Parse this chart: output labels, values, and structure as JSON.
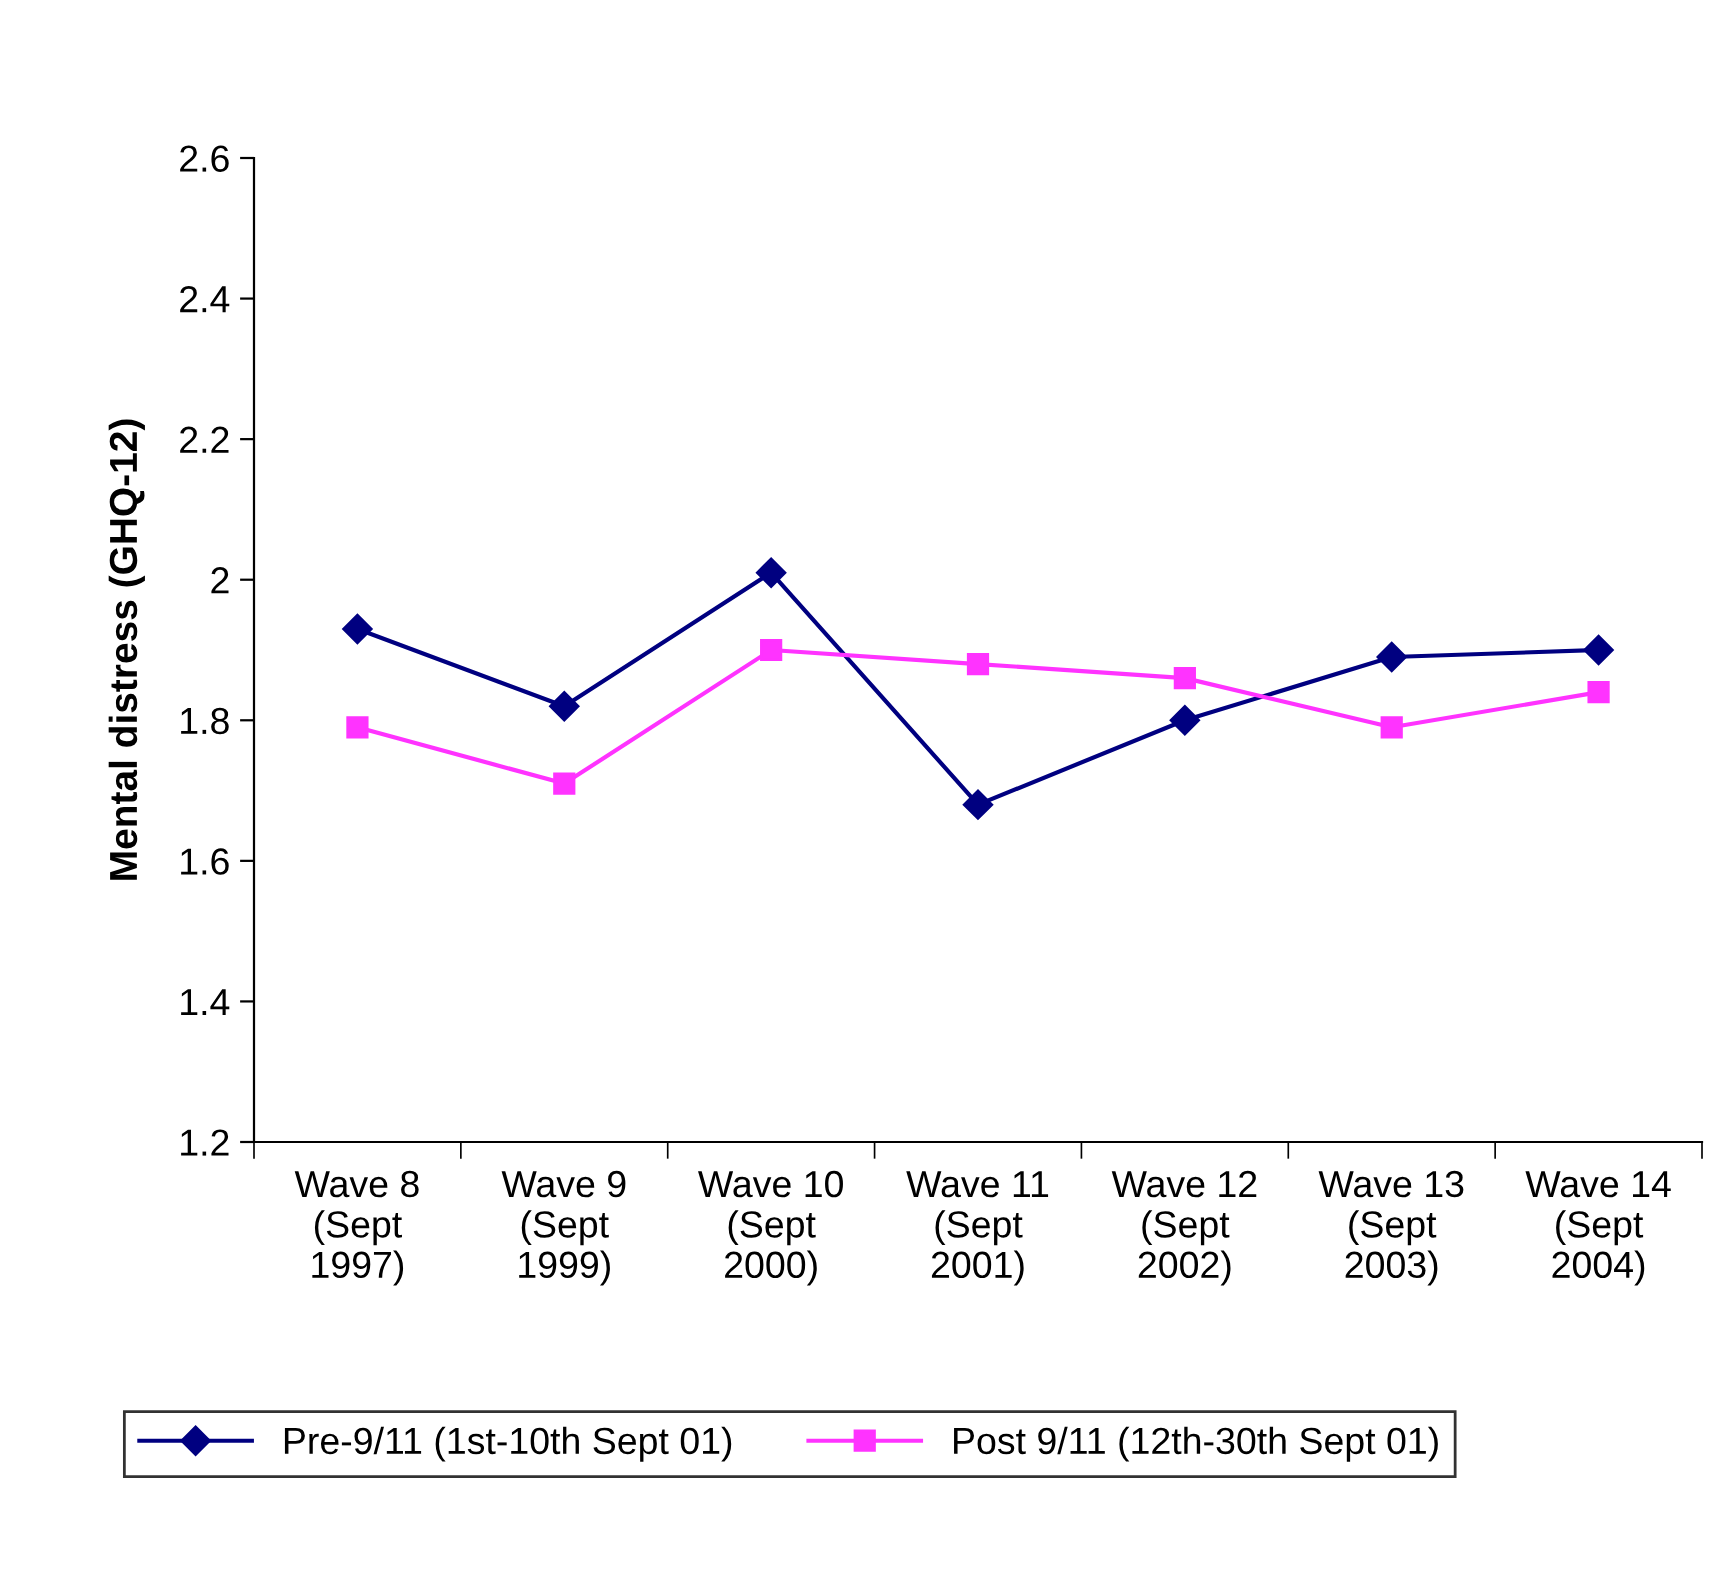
{
  "chart_data": {
    "type": "line",
    "ylabel": "Mental distress (GHQ-12)",
    "categories": [
      "Wave 8\n(Sept\n1997)",
      "Wave 9\n(Sept\n1999)",
      "Wave 10\n(Sept\n2000)",
      "Wave 11\n(Sept\n2001)",
      "Wave 12\n(Sept\n2002)",
      "Wave 13\n(Sept\n2003)",
      "Wave 14\n(Sept\n2004)"
    ],
    "series": [
      {
        "name": "Pre-9/11 (1st-10th Sept 01)",
        "color": "#000080",
        "marker": "diamond",
        "values": [
          1.93,
          1.82,
          2.01,
          1.68,
          1.8,
          1.89,
          1.9
        ]
      },
      {
        "name": "Post 9/11 (12th-30th Sept 01)",
        "color": "#ff33ff",
        "marker": "square",
        "values": [
          1.79,
          1.71,
          1.9,
          1.88,
          1.86,
          1.79,
          1.84
        ]
      }
    ],
    "ylim": [
      1.2,
      2.6
    ],
    "yticks": [
      1.2,
      1.4,
      1.6,
      1.8,
      2,
      2.2,
      2.4,
      2.6
    ],
    "grid": false,
    "legend": "bottom",
    "line_style": "solid"
  }
}
